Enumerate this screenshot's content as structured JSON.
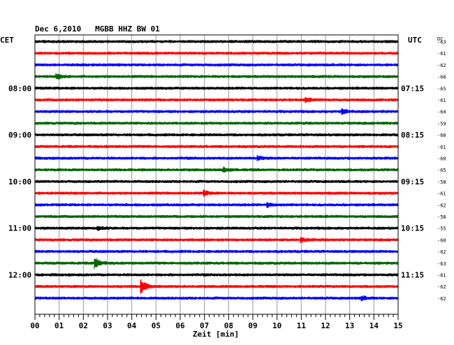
{
  "header": {
    "title": "Dec 6,2010   MGBB HHZ BW 01",
    "left_zone": "CET",
    "right_zone": "UTC",
    "dc_label": "DC"
  },
  "colors": {
    "black": "#000000",
    "red": "#ff0000",
    "blue": "#0000ff",
    "green": "#006400",
    "grid": "#9a9a9a",
    "frame": "#000000"
  },
  "chart_data": {
    "type": "line",
    "title": "Dec 6,2010   MGBB HHZ BW 01",
    "xlabel": "Zeit [min]",
    "ylabel": "",
    "xlim": [
      0,
      15
    ],
    "x_ticks": [
      "00",
      "01",
      "02",
      "03",
      "04",
      "05",
      "06",
      "07",
      "08",
      "09",
      "10",
      "11",
      "12",
      "13",
      "14",
      "15"
    ],
    "minor_ticks_per_minute": 5,
    "grid": true,
    "trace_minutes": 15,
    "trace_color_cycle": [
      "black",
      "red",
      "blue",
      "green"
    ],
    "cet_hour_labels": [
      {
        "label": "08:00",
        "trace": 4
      },
      {
        "label": "09:00",
        "trace": 8
      },
      {
        "label": "10:00",
        "trace": 12
      },
      {
        "label": "11:00",
        "trace": 16
      },
      {
        "label": "12:00",
        "trace": 20
      }
    ],
    "utc_hour_labels": [
      {
        "label": "07:15",
        "trace": 4
      },
      {
        "label": "08:15",
        "trace": 8
      },
      {
        "label": "09:15",
        "trace": 12
      },
      {
        "label": "10:15",
        "trace": 16
      },
      {
        "label": "11:15",
        "trace": 20
      }
    ],
    "dc_offsets": [
      -63,
      -61,
      -62,
      -68,
      -65,
      -61,
      -64,
      -59,
      -60,
      -61,
      -60,
      -65,
      -58,
      -61,
      -62,
      -58,
      -55,
      -60,
      -62,
      -63,
      -61,
      -62,
      -62
    ],
    "events": [
      {
        "trace": 3,
        "minute": 0.9,
        "amp": 1.4
      },
      {
        "trace": 5,
        "minute": 11.2,
        "amp": 1.1
      },
      {
        "trace": 6,
        "minute": 12.7,
        "amp": 1.6
      },
      {
        "trace": 10,
        "minute": 9.2,
        "amp": 1.2
      },
      {
        "trace": 11,
        "minute": 7.8,
        "amp": 1.2
      },
      {
        "trace": 13,
        "minute": 7.0,
        "amp": 1.3
      },
      {
        "trace": 14,
        "minute": 9.6,
        "amp": 1.2
      },
      {
        "trace": 16,
        "minute": 2.6,
        "amp": 1.1
      },
      {
        "trace": 17,
        "minute": 11.0,
        "amp": 1.3
      },
      {
        "trace": 19,
        "minute": 2.5,
        "amp": 3.0
      },
      {
        "trace": 21,
        "minute": 4.4,
        "amp": 4.2
      },
      {
        "trace": 22,
        "minute": 13.5,
        "amp": 1.1
      }
    ]
  }
}
